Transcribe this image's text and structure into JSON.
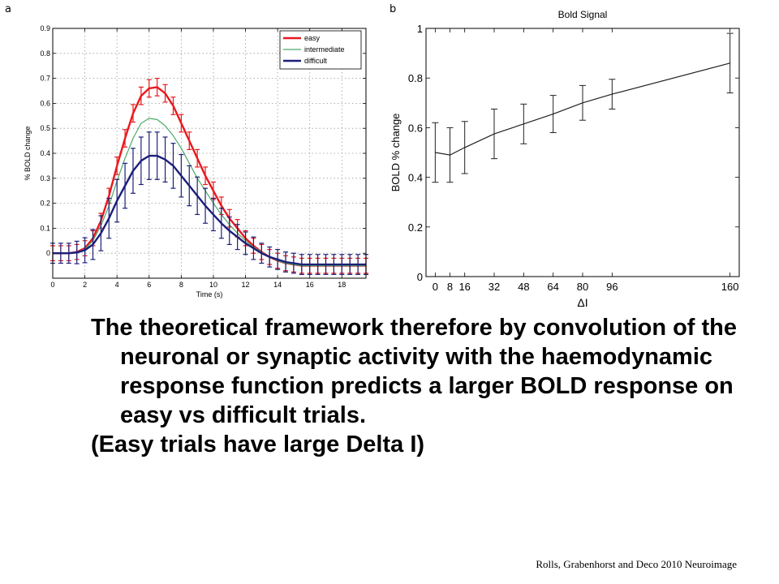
{
  "panels": {
    "a": "a",
    "b": "b"
  },
  "body_text": {
    "paragraph1": "The theoretical framework therefore by convolution of the neuronal or synaptic activity with the haemodynamic response function predicts a larger BOLD response on easy vs difficult trials.",
    "paragraph2": "(Easy trials have large Delta I)"
  },
  "citation": "Rolls, Grabenhorst and Deco 2010 Neuroimage",
  "chart_data": [
    {
      "type": "line",
      "title": "",
      "xlabel": "Time (s)",
      "ylabel": "% BOLD change",
      "xlim": [
        0,
        19.5
      ],
      "ylim": [
        -0.1,
        0.9
      ],
      "xticks": [
        "0",
        "2",
        "4",
        "6",
        "8",
        "10",
        "12",
        "14",
        "16",
        "18"
      ],
      "yticks": [
        "0",
        "0.1",
        "0.2",
        "0.3",
        "0.4",
        "0.5",
        "0.6",
        "0.7",
        "0.8",
        "0.9"
      ],
      "grid": true,
      "legend": "top-right",
      "x": [
        0,
        0.5,
        1,
        1.5,
        2,
        2.5,
        3,
        3.5,
        4,
        4.5,
        5,
        5.5,
        6,
        6.5,
        7,
        7.5,
        8,
        8.5,
        9,
        9.5,
        10,
        10.5,
        11,
        11.5,
        12,
        12.5,
        13,
        13.5,
        14,
        14.5,
        15,
        15.5,
        16,
        16.5,
        17,
        17.5,
        18,
        18.5,
        19,
        19.5
      ],
      "series": [
        {
          "name": "easy",
          "color": "#e8191e",
          "values": [
            0,
            0,
            0,
            0.005,
            0.02,
            0.06,
            0.13,
            0.23,
            0.35,
            0.46,
            0.56,
            0.63,
            0.66,
            0.665,
            0.64,
            0.59,
            0.52,
            0.45,
            0.38,
            0.31,
            0.25,
            0.19,
            0.14,
            0.1,
            0.06,
            0.03,
            0.005,
            -0.015,
            -0.03,
            -0.04,
            -0.045,
            -0.05,
            -0.05,
            -0.05,
            -0.05,
            -0.05,
            -0.05,
            -0.05,
            -0.05,
            -0.05
          ],
          "error": [
            0.03,
            0.03,
            0.03,
            0.03,
            0.03,
            0.03,
            0.03,
            0.03,
            0.035,
            0.035,
            0.035,
            0.035,
            0.035,
            0.035,
            0.035,
            0.035,
            0.035,
            0.035,
            0.035,
            0.035,
            0.035,
            0.035,
            0.035,
            0.035,
            0.03,
            0.03,
            0.03,
            0.03,
            0.03,
            0.03,
            0.03,
            0.03,
            0.03,
            0.03,
            0.03,
            0.03,
            0.03,
            0.03,
            0.03,
            0.03
          ]
        },
        {
          "name": "intermediate",
          "color": "#4daa6a",
          "values": [
            0,
            0,
            0,
            0.004,
            0.016,
            0.05,
            0.11,
            0.19,
            0.29,
            0.38,
            0.46,
            0.52,
            0.54,
            0.535,
            0.51,
            0.47,
            0.42,
            0.36,
            0.3,
            0.25,
            0.2,
            0.155,
            0.115,
            0.08,
            0.05,
            0.025,
            0.005,
            -0.015,
            -0.03,
            -0.04,
            -0.045,
            -0.05,
            -0.05,
            -0.05,
            -0.05,
            -0.05,
            -0.05,
            -0.05,
            -0.05,
            -0.05
          ]
        },
        {
          "name": "difficult",
          "color": "#1c1f7a",
          "values": [
            0,
            0,
            0,
            0.003,
            0.012,
            0.035,
            0.08,
            0.14,
            0.21,
            0.27,
            0.33,
            0.37,
            0.39,
            0.39,
            0.375,
            0.35,
            0.31,
            0.27,
            0.23,
            0.19,
            0.155,
            0.12,
            0.09,
            0.065,
            0.04,
            0.02,
            0.0,
            -0.015,
            -0.025,
            -0.035,
            -0.04,
            -0.045,
            -0.045,
            -0.045,
            -0.045,
            -0.045,
            -0.045,
            -0.045,
            -0.045,
            -0.045
          ],
          "error": [
            0.04,
            0.04,
            0.04,
            0.045,
            0.05,
            0.06,
            0.07,
            0.08,
            0.085,
            0.09,
            0.09,
            0.095,
            0.095,
            0.095,
            0.09,
            0.09,
            0.085,
            0.08,
            0.075,
            0.07,
            0.065,
            0.06,
            0.055,
            0.05,
            0.045,
            0.045,
            0.04,
            0.04,
            0.04,
            0.04,
            0.04,
            0.04,
            0.04,
            0.04,
            0.04,
            0.04,
            0.04,
            0.04,
            0.04,
            0.04
          ]
        }
      ]
    },
    {
      "type": "line",
      "title": "Bold Signal",
      "xlabel": "ΔI",
      "ylabel": "BOLD % change",
      "xlim": [
        -5,
        165
      ],
      "ylim": [
        0,
        1
      ],
      "xticks": [
        "0",
        "8",
        "16",
        "32",
        "48",
        "64",
        "80",
        "96",
        "160"
      ],
      "yticks": [
        "0",
        "0.2",
        "0.4",
        "0.6",
        "0.8",
        "1"
      ],
      "grid": false,
      "x": [
        0,
        8,
        16,
        32,
        48,
        64,
        80,
        96,
        160
      ],
      "series": [
        {
          "color": "#222222",
          "values": [
            0.5,
            0.49,
            0.52,
            0.575,
            0.615,
            0.655,
            0.7,
            0.735,
            0.86
          ],
          "error": [
            0.12,
            0.11,
            0.105,
            0.1,
            0.08,
            0.075,
            0.07,
            0.06,
            0.12
          ]
        }
      ]
    }
  ]
}
